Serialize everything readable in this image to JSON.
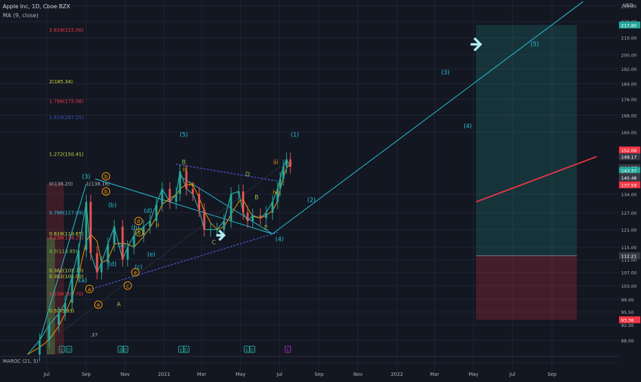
{
  "header": {
    "title": "Apple Inc, 1D, Cboe BZX",
    "ma": "MA (9, close)",
    "indicator": "MAROC (21, 5)",
    "unit": "USD"
  },
  "chart_data": {
    "type": "line",
    "title": "Apple Inc, 1D, Cboe BZX",
    "xlabel": "",
    "ylabel": "",
    "ylim": [
      84,
      234
    ],
    "y_scale": "log",
    "grid": true,
    "y_ticks": [
      88.0,
      92.0,
      95.5,
      99.0,
      103.0,
      107.0,
      111.0,
      115.0,
      121.0,
      127.0,
      134.0,
      160.0,
      168.0,
      176.0,
      184.0,
      192.0,
      200.0,
      210.0,
      220.0,
      230.0
    ],
    "x_ticks": [
      "Jul",
      "Sep",
      "Nov",
      "2021",
      "Mar",
      "May",
      "Jul",
      "Sep",
      "Nov",
      "2022",
      "Mar",
      "May",
      "Jul",
      "Sep"
    ],
    "x_tick_dates": [
      "2020-07-01",
      "2020-09-01",
      "2020-11-01",
      "2021-01-01",
      "2021-03-01",
      "2021-05-01",
      "2021-07-01",
      "2021-09-01",
      "2021-11-01",
      "2022-01-01",
      "2022-03-01",
      "2022-05-01",
      "2022-07-01",
      "2022-09-01"
    ],
    "price_badges": [
      {
        "label": "217.80",
        "value": 217.8,
        "color": "#26a69a"
      },
      {
        "label": "152.06",
        "value": 152.06,
        "color": "#f23645"
      },
      {
        "label": "149.17",
        "value": 149.17,
        "color": "#363a45"
      },
      {
        "label": "144.57",
        "value": 144.57,
        "color": "#363a45"
      },
      {
        "label": "143.37",
        "value": 143.37,
        "color": "#26a69a"
      },
      {
        "label": "140.92",
        "value": 140.92,
        "color": "#363a45"
      },
      {
        "label": "140.48",
        "value": 140.48,
        "color": "#363a45"
      },
      {
        "label": "137.59",
        "value": 137.59,
        "color": "#f23645"
      },
      {
        "label": "112.21",
        "value": 112.21,
        "color": "#363a45"
      },
      {
        "label": "93.36",
        "value": 93.36,
        "color": "#f23645"
      }
    ],
    "series": [
      {
        "name": "",
        "color": "#26a69a",
        "x": [
          "2020-06-01",
          "2020-06-20",
          "2020-07-05",
          "2020-07-20",
          "2020-07-30",
          "2020-08-10",
          "2020-08-20",
          "2020-09-01",
          "2020-09-08",
          "2020-09-18",
          "2020-09-25",
          "2020-10-05",
          "2020-10-15",
          "2020-10-28",
          "2020-11-05",
          "2020-11-15",
          "2020-11-30",
          "2020-12-10",
          "2020-12-20",
          "2020-12-29",
          "2021-01-10",
          "2021-01-20",
          "2021-01-26",
          "2021-02-05",
          "2021-02-15",
          "2021-02-25",
          "2021-03-05",
          "2021-03-15",
          "2021-03-25",
          "2021-04-05",
          "2021-04-16",
          "2021-04-28",
          "2021-05-05",
          "2021-05-12",
          "2021-05-20",
          "2021-06-01",
          "2021-06-10",
          "2021-06-20",
          "2021-06-28",
          "2021-07-02",
          "2021-07-07",
          "2021-07-12",
          "2021-07-18"
        ],
        "values": [
          84.5,
          88,
          92,
          95,
          98,
          106,
          114,
          131,
          113,
          107,
          110,
          116,
          122,
          111,
          115,
          119,
          122,
          124,
          130,
          136,
          131,
          134,
          143,
          136,
          134,
          128,
          121,
          121,
          121,
          124,
          134,
          135,
          127,
          124,
          126,
          125,
          127,
          131,
          136,
          140,
          145,
          148,
          145
        ]
      }
    ],
    "annotations": {
      "fibonacci": [
        {
          "label": "2.618(215.00)",
          "value": 215.0,
          "color": "#f23645"
        },
        {
          "label": "2(185.34)",
          "value": 185.34,
          "color": "#cddc39"
        },
        {
          "label": "1.786(175.08)",
          "value": 175.08,
          "color": "#f23645"
        },
        {
          "label": "1.618(167.25)",
          "value": 167.25,
          "color": "#3f51b5"
        },
        {
          "label": "1.272(150.41)",
          "value": 150.41,
          "color": "#cddc39"
        },
        {
          "label": "0(138.20)",
          "value": 138.2,
          "color": "#b2b5be"
        },
        {
          "label": "1(138.16)",
          "value": 138.16,
          "color": "#b2b5be"
        },
        {
          "label": "0.786(127.09)",
          "value": 127.09,
          "color": "#26c6da"
        },
        {
          "label": "0.618(119.65)",
          "value": 119.65,
          "color": "#cddc39"
        },
        {
          "label": "0.236(118.25)",
          "value": 118.25,
          "color": "#f23645"
        },
        {
          "label": "0.5(113.85)",
          "value": 113.85,
          "color": "#8bc34a"
        },
        {
          "label": "0.382(107.70)",
          "value": 107.7,
          "color": "#cddc39"
        },
        {
          "label": "0.382(105.90)",
          "value": 105.9,
          "color": "#cddc39"
        },
        {
          "label": "0.236(100.70)",
          "value": 100.7,
          "color": "#f23645"
        },
        {
          "label": "0.5(95.93)",
          "value": 95.93,
          "color": "#cddc39"
        },
        {
          "label": ".37",
          "value": 89.5,
          "color": "#b2b5be"
        }
      ],
      "waves": [
        {
          "label": "(5)",
          "color": "#26c6da",
          "date": "2021-02-01",
          "value": 158
        },
        {
          "label": "(3)",
          "color": "#26c6da",
          "date": "2020-09-01",
          "value": 140
        },
        {
          "label": "(1)",
          "color": "#26c6da",
          "date": "2021-07-25",
          "value": 158
        },
        {
          "label": "(2)",
          "color": "#26c6da",
          "date": "2021-08-20",
          "value": 131
        },
        {
          "label": "(4)",
          "color": "#26c6da",
          "date": "2021-07-01",
          "value": 117
        },
        {
          "label": "(3)",
          "color": "#26c6da",
          "date": "2022-03-18",
          "value": 189
        },
        {
          "label": "(4)",
          "color": "#26c6da",
          "date": "2022-04-22",
          "value": 162
        },
        {
          "label": "(5)",
          "color": "#26c6da",
          "date": "2022-08-05",
          "value": 205
        },
        {
          "label": "B",
          "color": "#8bc34a",
          "date": "2021-02-01",
          "value": 146
        },
        {
          "label": "iii",
          "color": "#ff9800",
          "date": "2021-02-03",
          "value": 143
        },
        {
          "label": "D",
          "color": "#8bc34a",
          "date": "2021-05-12",
          "value": 141
        },
        {
          "label": "B",
          "color": "#8bc34a",
          "date": "2021-05-26",
          "value": 132
        },
        {
          "label": "C",
          "color": "#8bc34a",
          "date": "2021-03-20",
          "value": 116
        },
        {
          "label": "E",
          "color": "#8bc34a",
          "date": "2021-06-10",
          "value": 121
        },
        {
          "label": "A",
          "color": "#8bc34a",
          "date": "2020-10-22",
          "value": 97
        },
        {
          "label": "(b)",
          "color": "#26c6da",
          "date": "2020-10-12",
          "value": 129
        },
        {
          "label": "(d)",
          "color": "#26c6da",
          "date": "2020-12-07",
          "value": 127
        },
        {
          "label": "(b)",
          "color": "#26c6da",
          "date": "2020-11-17",
          "value": 121
        },
        {
          "label": "(a)",
          "color": "#26c6da",
          "date": "2020-10-27",
          "value": 115
        },
        {
          "label": "(e)",
          "color": "#26c6da",
          "date": "2020-12-12",
          "value": 112
        },
        {
          "label": "(d)",
          "color": "#26c6da",
          "date": "2020-10-12",
          "value": 109
        },
        {
          "label": "(c)",
          "color": "#26c6da",
          "date": "2020-11-22",
          "value": 108
        },
        {
          "label": "(a)",
          "color": "#26c6da",
          "date": "2020-08-27",
          "value": 104
        },
        {
          "label": "iv",
          "color": "#ff9800",
          "date": "2021-02-13",
          "value": 137
        },
        {
          "label": "ii",
          "color": "#ff9800",
          "date": "2020-12-22",
          "value": 122
        },
        {
          "label": "iii",
          "color": "#ff9800",
          "date": "2021-06-25",
          "value": 146
        },
        {
          "label": "iv",
          "color": "#ff9800",
          "date": "2021-06-24",
          "value": 134
        }
      ],
      "circled": [
        {
          "label": "b",
          "date": "2020-10-02",
          "value": 141
        },
        {
          "label": "b",
          "date": "2020-10-02",
          "value": 135
        },
        {
          "label": "d",
          "date": "2020-11-22",
          "value": 124
        },
        {
          "label": "b",
          "date": "2020-11-23",
          "value": 120
        },
        {
          "label": "e",
          "date": "2020-11-17",
          "value": 107
        },
        {
          "label": "a",
          "date": "2020-09-06",
          "value": 102
        },
        {
          "label": "c",
          "date": "2020-11-05",
          "value": 103
        },
        {
          "label": "a",
          "date": "2020-09-20",
          "value": 97.5
        }
      ],
      "bottom_markers": [
        {
          "label": "E",
          "date": "2020-07-25"
        },
        {
          "label": "D",
          "date": "2020-08-05"
        },
        {
          "label": "E",
          "date": "2020-10-25"
        },
        {
          "label": "D",
          "date": "2020-11-01"
        },
        {
          "label": "E",
          "date": "2021-01-28"
        },
        {
          "label": "D",
          "date": "2021-02-05"
        },
        {
          "label": "E",
          "date": "2021-05-11"
        },
        {
          "label": "D",
          "date": "2021-05-19"
        },
        {
          "label": "E",
          "date": "2021-07-14"
        }
      ],
      "position_targets": {
        "entry": 112.21,
        "target": 217.8,
        "stop": 93.36,
        "start_date": "2022-05-05",
        "end_date": "2022-10-10"
      },
      "projection": [
        {
          "date": "2021-01-26",
          "value": 141
        },
        {
          "date": "2021-06-20",
          "value": 119.5
        },
        {
          "date": "2022-10-20",
          "value": 233
        }
      ],
      "red_trend": [
        {
          "date": "2022-05-05",
          "value": 131
        },
        {
          "date": "2022-11-10",
          "value": 149.2
        }
      ]
    }
  }
}
